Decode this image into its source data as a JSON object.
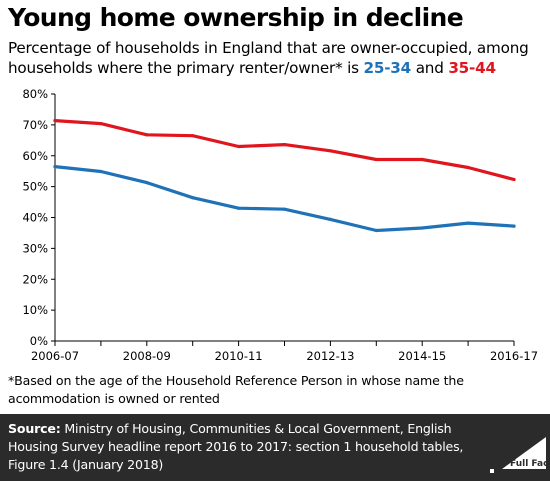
{
  "title": "Young home ownership in decline",
  "subtitle": {
    "text": "Percentage of households in England that are owner-occupied, among households where the primary renter/owner* is",
    "series1_label": "25-34",
    "joiner": "and",
    "series2_label": "35-44"
  },
  "footnote": "*Based on the age of the Household Reference Person in whose name the acommodation is owned or rented",
  "source": {
    "label": "Source:",
    "text": "Ministry of Housing, Communities & Local Government, English Housing Survey headline report 2016 to 2017: section 1 household tables, Figure 1.4 (January 2018)"
  },
  "logo_text": "Full Fact",
  "colors": {
    "series1": "#1f72b8",
    "series2": "#e0161f",
    "axis": "#000000",
    "footer_bg": "#2b2b2b"
  },
  "chart_data": {
    "type": "line",
    "title": "Young home ownership in decline",
    "x": [
      "2006-07",
      "2007-08",
      "2008-09",
      "2009-10",
      "2010-11",
      "2011-12",
      "2012-13",
      "2013-14",
      "2014-15",
      "2015-16",
      "2016-17"
    ],
    "xtick_labels": [
      "2006-07",
      "2008-09",
      "2010-11",
      "2012-13",
      "2014-15",
      "2016-17"
    ],
    "yticks": [
      "0%",
      "10%",
      "20%",
      "30%",
      "40%",
      "50%",
      "60%",
      "70%",
      "80%"
    ],
    "ylim": [
      0,
      80
    ],
    "grid": false,
    "series": [
      {
        "name": "25-34",
        "color": "#1f72b8",
        "values": [
          56.5,
          54.9,
          51.3,
          46.4,
          43.0,
          42.7,
          39.4,
          35.8,
          36.6,
          38.2,
          37.2
        ]
      },
      {
        "name": "35-44",
        "color": "#e0161f",
        "values": [
          71.4,
          70.4,
          66.8,
          66.5,
          63.0,
          63.6,
          61.6,
          58.8,
          58.8,
          56.2,
          52.3
        ]
      }
    ]
  }
}
